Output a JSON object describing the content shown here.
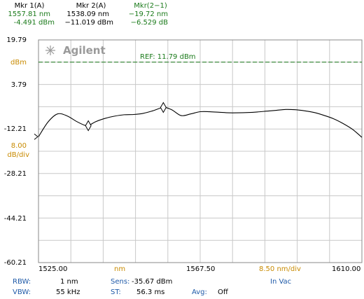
{
  "markers": {
    "mkr1": {
      "label": "Mkr 1(A)",
      "wavelength": "1557.81 nm",
      "level": "-4.491 dBm"
    },
    "mkr2": {
      "label": "Mkr 2(A)",
      "wavelength": "1538.09 nm",
      "level": "−11.019 dBm"
    },
    "delta": {
      "label": "Mkr(2−1)",
      "wavelength": "−19.72 nm",
      "level": "−6.529 dB"
    }
  },
  "brand": {
    "name": "Agilent",
    "logo_icon": "spark-logo-icon"
  },
  "ref_label": "REF: 11.79 dBm",
  "y_axis": {
    "unit": "dBm",
    "scale_value": "8.00",
    "scale_unit": "dB/div",
    "ticks": [
      "19.79",
      "3.79",
      "-12.21",
      "-28.21",
      "-44.21",
      "-60.21"
    ]
  },
  "x_axis": {
    "start": "1525.00",
    "center_unit": "nm",
    "center": "1567.50",
    "scale": "8.50 nm/div",
    "end": "1610.00"
  },
  "settings": {
    "rbw_label": "RBW:",
    "rbw_value": "1 nm",
    "sens_label": "Sens:",
    "sens_value": "-35.67 dBm",
    "medium": "In Vac",
    "vbw_label": "VBW:",
    "vbw_value": "55 kHz",
    "st_label": "ST:",
    "st_value": "56.3 ms",
    "avg_label": "Avg:",
    "avg_value": "Off"
  },
  "colors": {
    "grid": "#c8c8c8",
    "trace": "#000000",
    "ref_line": "#1a7a1a",
    "marker_label": "#1a7a1a",
    "orange_label": "#c88a00",
    "blue_label": "#1f5aa8"
  },
  "chart_data": {
    "type": "line",
    "title": "",
    "xlabel": "nm",
    "ylabel": "dBm",
    "xlim": [
      1525.0,
      1610.0
    ],
    "ylim": [
      -60.21,
      19.79
    ],
    "reference_level": 11.79,
    "series": [
      {
        "x": [
          1525.0,
          1527.5,
          1530.0,
          1532.5,
          1535.0,
          1537.0,
          1538.09,
          1540.0,
          1542.5,
          1545.0,
          1547.5,
          1550.0,
          1552.5,
          1555.0,
          1557.81,
          1560.0,
          1562.5,
          1565.0,
          1567.5,
          1570.0,
          1572.5,
          1575.0,
          1577.5,
          1580.0,
          1582.5,
          1585.0,
          1587.5,
          1590.0,
          1592.5,
          1595.0,
          1597.5,
          1600.0,
          1602.5,
          1605.0,
          1607.5,
          1610.0
        ],
        "y": [
          -15.0,
          -9.7,
          -6.8,
          -7.5,
          -9.5,
          -10.8,
          -11.02,
          -9.6,
          -8.4,
          -7.6,
          -7.1,
          -7.0,
          -6.6,
          -5.7,
          -4.49,
          -5.3,
          -7.4,
          -6.8,
          -6.0,
          -6.0,
          -6.2,
          -6.4,
          -6.4,
          -6.3,
          -6.1,
          -5.8,
          -5.5,
          -5.2,
          -5.3,
          -5.7,
          -6.3,
          -7.3,
          -8.5,
          -10.2,
          -12.3,
          -15.2
        ]
      }
    ],
    "markers": [
      {
        "name": "Mkr 1",
        "x": 1557.81,
        "y": -4.491
      },
      {
        "name": "Mkr 2",
        "x": 1538.09,
        "y": -11.019
      }
    ],
    "grid": true
  }
}
